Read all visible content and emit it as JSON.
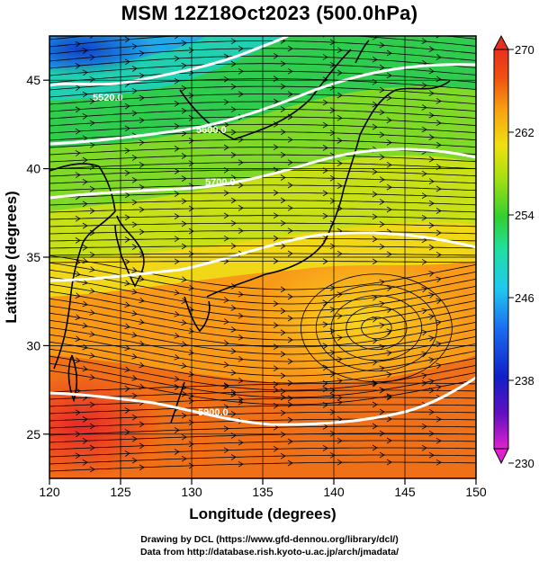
{
  "title": "MSM 12Z18Oct2023 (500.0hPa)",
  "map": {
    "x_axis": {
      "label": "Longitude (degrees)",
      "range": [
        120,
        150
      ],
      "ticks": [
        120,
        125,
        130,
        135,
        140,
        145,
        150
      ],
      "tick_labels": [
        "120",
        "125",
        "130",
        "135",
        "140",
        "145",
        "150"
      ]
    },
    "y_axis": {
      "label": "Latitude  (degrees)",
      "range": [
        22.5,
        47.5
      ],
      "ticks": [
        25,
        30,
        35,
        40,
        45
      ],
      "tick_labels": [
        "25",
        "30",
        "35",
        "40",
        "45"
      ]
    },
    "field": "temperature (shaded) with wind streamlines and geopotential height contours",
    "gridlines": true
  },
  "colorbar": {
    "min": 230,
    "max": 270,
    "tick_labels": [
      "270",
      "262",
      "254",
      "246",
      "238",
      "230"
    ],
    "colors": [
      "#e020d0",
      "#6010c0",
      "#1020c8",
      "#1a6cf0",
      "#20c8f0",
      "#20e0a0",
      "#30d030",
      "#a8e010",
      "#f0e010",
      "#f8a010",
      "#f05010",
      "#e83020"
    ]
  },
  "contours": {
    "color": "#ffffff",
    "labels": [
      "5520.0",
      "5600.0",
      "5700.0",
      "5900.0"
    ]
  },
  "credits": {
    "line1": "Drawing by DCL (https://www.gfd-dennou.org/library/dcl/)",
    "line2": "Data from http://database.rish.kyoto-u.ac.jp/arch/jmadata/"
  }
}
